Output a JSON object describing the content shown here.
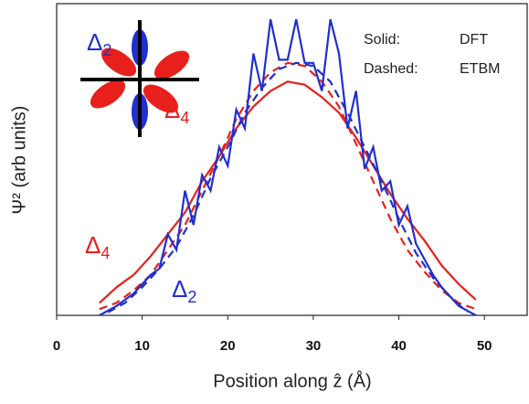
{
  "chart_data": {
    "type": "line",
    "xlabel": "Position along ẑ (Å)",
    "ylabel": "Ψ² (arb units)",
    "xlim": [
      0,
      55
    ],
    "xticks": [
      0,
      10,
      20,
      30,
      40,
      50
    ],
    "ylim": [
      0,
      1
    ],
    "legend_notes": [
      [
        "Solid:",
        "DFT"
      ],
      [
        "Dashed:",
        "ETBM"
      ]
    ],
    "annotations": [
      {
        "symbol": "Δ",
        "subscript": "2",
        "color": "#1f2fd0"
      },
      {
        "symbol": "Δ",
        "subscript": "4",
        "color": "#e8201c"
      },
      {
        "symbol": "Δ",
        "subscript": "4",
        "color": "#e8201c"
      },
      {
        "symbol": "Δ",
        "subscript": "2",
        "color": "#1f2fd0"
      }
    ],
    "series": [
      {
        "color": "#e8201c",
        "style": "solid",
        "x": [
          5,
          7,
          9,
          11,
          13,
          15,
          17,
          19,
          21,
          23,
          25,
          27,
          29,
          31,
          33,
          35,
          37,
          39,
          41,
          43,
          45,
          47,
          49
        ],
        "values": [
          0.04,
          0.09,
          0.13,
          0.19,
          0.26,
          0.33,
          0.43,
          0.51,
          0.6,
          0.67,
          0.72,
          0.75,
          0.74,
          0.7,
          0.65,
          0.57,
          0.48,
          0.39,
          0.31,
          0.24,
          0.16,
          0.1,
          0.05
        ]
      },
      {
        "color": "#e8201c",
        "style": "dashed",
        "x": [
          5,
          7,
          9,
          11,
          13,
          15,
          17,
          19,
          21,
          23,
          25,
          27,
          29,
          31,
          33,
          35,
          37,
          39,
          41,
          43,
          45,
          47,
          49
        ],
        "values": [
          0.02,
          0.04,
          0.08,
          0.13,
          0.21,
          0.29,
          0.4,
          0.51,
          0.63,
          0.72,
          0.78,
          0.81,
          0.8,
          0.75,
          0.67,
          0.55,
          0.43,
          0.31,
          0.21,
          0.14,
          0.08,
          0.04,
          0.02
        ]
      },
      {
        "color": "#1f2fd0",
        "style": "solid",
        "x": [
          5,
          7,
          9,
          11,
          12,
          13,
          14,
          15,
          16,
          17,
          18,
          19,
          20,
          21,
          22,
          23,
          24,
          25,
          26,
          27,
          28,
          29,
          30,
          31,
          32,
          33,
          34,
          35,
          36,
          37,
          38,
          39,
          40,
          41,
          42,
          43,
          44,
          45,
          47,
          49
        ],
        "values": [
          0,
          0.03,
          0.07,
          0.13,
          0.15,
          0.26,
          0.21,
          0.4,
          0.29,
          0.45,
          0.4,
          0.54,
          0.48,
          0.66,
          0.6,
          0.84,
          0.72,
          0.95,
          0.82,
          0.82,
          0.95,
          0.81,
          0.81,
          0.72,
          0.95,
          0.84,
          0.6,
          0.72,
          0.47,
          0.54,
          0.4,
          0.43,
          0.29,
          0.35,
          0.23,
          0.18,
          0.13,
          0.09,
          0.03,
          0
        ]
      },
      {
        "color": "#1f2fd0",
        "style": "dashed",
        "x": [
          6,
          8,
          10,
          12,
          14,
          16,
          18,
          20,
          22,
          24,
          26,
          28,
          30,
          32,
          34,
          36,
          38,
          40,
          42,
          44,
          46,
          48
        ],
        "values": [
          0.01,
          0.04,
          0.09,
          0.15,
          0.22,
          0.32,
          0.44,
          0.54,
          0.65,
          0.73,
          0.79,
          0.81,
          0.8,
          0.75,
          0.65,
          0.54,
          0.43,
          0.31,
          0.2,
          0.12,
          0.06,
          0.01
        ]
      }
    ]
  }
}
